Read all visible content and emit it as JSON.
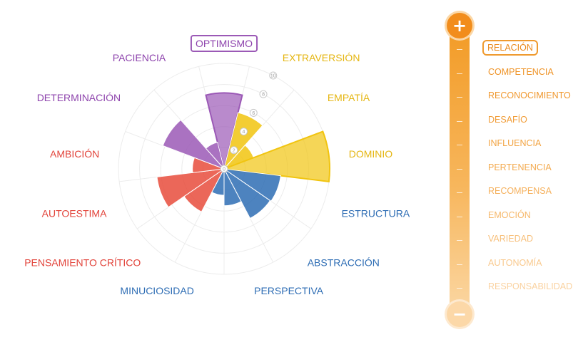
{
  "chart_data": {
    "type": "polar-bar",
    "center_label": "0",
    "radial_ticks": [
      2,
      4,
      6,
      8,
      10
    ],
    "radial_tick_labels": [
      "2",
      "4",
      "6",
      "8",
      "10"
    ],
    "rmax": 10,
    "categories": [
      {
        "label": "OPTIMISMO",
        "value": 7.2,
        "color": "#9b59b6",
        "text_color": "#8e44ad",
        "highlighted": true
      },
      {
        "label": "EXTRAVERSIÓN",
        "value": 5.5,
        "color": "#f1c40f",
        "text_color": "#e5b612"
      },
      {
        "label": "EMPATÍA",
        "value": 3.0,
        "color": "#f1c40f",
        "text_color": "#e5b612"
      },
      {
        "label": "DOMINIO",
        "value": 10.0,
        "color": "#f1c40f",
        "text_color": "#e5b612",
        "highlighted": true
      },
      {
        "label": "ESTRUCTURA",
        "value": 5.4,
        "color": "#2e6db4",
        "text_color": "#2e6db4"
      },
      {
        "label": "ABSTRACCIÓN",
        "value": 5.3,
        "color": "#2e6db4",
        "text_color": "#2e6db4"
      },
      {
        "label": "PERSPECTIVA",
        "value": 3.5,
        "color": "#2e6db4",
        "text_color": "#2e6db4"
      },
      {
        "label": "MINUCIOSIDAD",
        "value": 2.5,
        "color": "#2e6db4",
        "text_color": "#2e6db4"
      },
      {
        "label": "PENSAMIENTO CRÍTICO",
        "value": 4.6,
        "color": "#e74c3c",
        "text_color": "#e2433a"
      },
      {
        "label": "AUTOESTIMA",
        "value": 6.4,
        "color": "#e74c3c",
        "text_color": "#e2433a"
      },
      {
        "label": "AMBICIÓN",
        "value": 3.0,
        "color": "#e74c3c",
        "text_color": "#e2433a"
      },
      {
        "label": "DETERMINACIÓN",
        "value": 6.2,
        "color": "#9b59b6",
        "text_color": "#8e44ad"
      },
      {
        "label": "PACIENCIA",
        "value": 2.6,
        "color": "#9b59b6",
        "text_color": "#8e44ad"
      }
    ]
  },
  "scale": {
    "plus_symbol": "+",
    "minus_symbol": "−",
    "items": [
      {
        "label": "RELACIÓN",
        "color": "#ea8a1c",
        "selected": true
      },
      {
        "label": "COMPETENCIA",
        "color": "#ef9326"
      },
      {
        "label": "RECONOCIMIENTO",
        "color": "#f0982e"
      },
      {
        "label": "DESAFÍO",
        "color": "#f19d38"
      },
      {
        "label": "INFLUENCIA",
        "color": "#f2a443"
      },
      {
        "label": "PERTENENCIA",
        "color": "#f3aa4f"
      },
      {
        "label": "RECOMPENSA",
        "color": "#f5b05c"
      },
      {
        "label": "EMOCIÓN",
        "color": "#f6b86b"
      },
      {
        "label": "VARIEDAD",
        "color": "#f7c07c"
      },
      {
        "label": "AUTONOMÍA",
        "color": "#f9c98e"
      },
      {
        "label": "RESPONSABILIDAD",
        "color": "#fad2a0"
      }
    ]
  }
}
